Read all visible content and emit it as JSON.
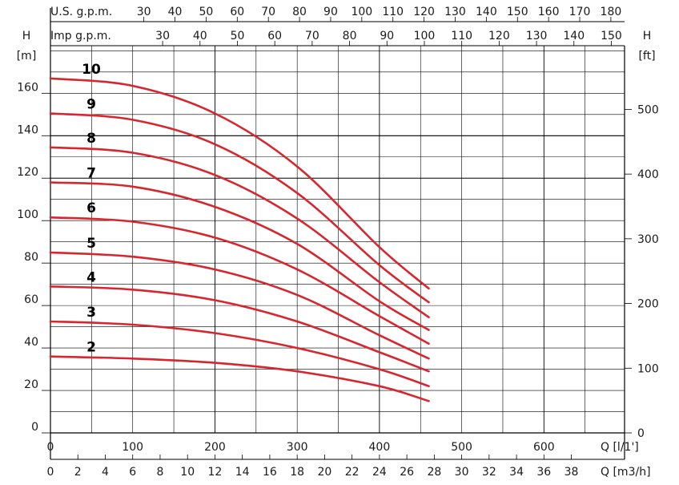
{
  "colors": {
    "curve": "#d8262e",
    "grid": "#000000",
    "text": "#1a1a1a"
  },
  "chart_data": {
    "type": "line",
    "title": "",
    "xlabel": "Q [l/1']",
    "ylabel": "H [m]",
    "xlim": [
      0,
      760
    ],
    "ylim": [
      0,
      180
    ],
    "grid": true,
    "axis_labels": {
      "h_top": "H",
      "h_unit": "[m]",
      "ft_top": "H",
      "ft_unit": "[ft]",
      "q_lmin": "Q  [l/1']",
      "q_m3h": "Q  [m3/h]",
      "usgpm": "U.S.  g.p.m.",
      "impgpm": "Imp  g.p.m."
    },
    "y_ticks_m": [
      0,
      20,
      40,
      60,
      80,
      100,
      120,
      140,
      160
    ],
    "y_ticks_ft": [
      0,
      100,
      200,
      300,
      400,
      500
    ],
    "x_ticks_lmin": [
      0,
      100,
      200,
      300,
      400,
      500,
      600
    ],
    "x_ticks_m3h": [
      0,
      2,
      4,
      6,
      8,
      10,
      12,
      14,
      16,
      18,
      20,
      22,
      24,
      26,
      28,
      30,
      32,
      34,
      36,
      38
    ],
    "top_ticks_usgpm": [
      30,
      40,
      50,
      60,
      70,
      80,
      90,
      100,
      110,
      120,
      130,
      140,
      150,
      160,
      170,
      180
    ],
    "top_ticks_impgpm": [
      30,
      40,
      50,
      60,
      70,
      80,
      90,
      100,
      110,
      120,
      130,
      140,
      150
    ],
    "series": [
      {
        "name": "2",
        "x": [
          0,
          100,
          200,
          300,
          400,
          460
        ],
        "y": [
          36,
          35,
          33,
          29,
          22,
          15
        ]
      },
      {
        "name": "3",
        "x": [
          0,
          100,
          200,
          300,
          400,
          460
        ],
        "y": [
          52.5,
          51,
          47,
          40,
          30,
          22
        ]
      },
      {
        "name": "4",
        "x": [
          0,
          100,
          200,
          300,
          400,
          460
        ],
        "y": [
          69,
          67.5,
          62.5,
          52.5,
          38,
          29
        ]
      },
      {
        "name": "5",
        "x": [
          0,
          100,
          200,
          300,
          400,
          460
        ],
        "y": [
          85,
          83,
          77,
          65,
          46,
          35
        ]
      },
      {
        "name": "6",
        "x": [
          0,
          100,
          200,
          300,
          400,
          460
        ],
        "y": [
          101.5,
          99.5,
          92,
          77,
          55,
          42
        ]
      },
      {
        "name": "7",
        "x": [
          0,
          100,
          200,
          300,
          400,
          460
        ],
        "y": [
          118,
          116,
          106.5,
          89,
          62,
          48.5
        ]
      },
      {
        "name": "8",
        "x": [
          0,
          100,
          200,
          300,
          400,
          460
        ],
        "y": [
          134.5,
          132,
          121.5,
          101,
          71,
          54.5
        ]
      },
      {
        "name": "9",
        "x": [
          0,
          100,
          200,
          300,
          400,
          460
        ],
        "y": [
          150.5,
          147.5,
          136,
          113,
          79,
          61.5
        ]
      },
      {
        "name": "10",
        "x": [
          0,
          100,
          200,
          300,
          400,
          460
        ],
        "y": [
          167,
          163.5,
          150.5,
          125.5,
          87.5,
          68
        ]
      }
    ]
  }
}
